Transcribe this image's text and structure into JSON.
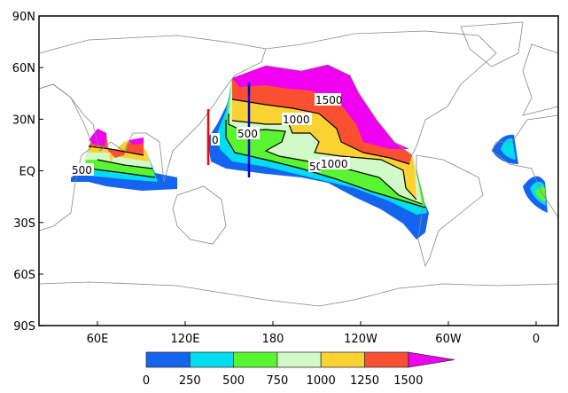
{
  "map": {
    "lat_ticks": [
      "90N",
      "60N",
      "30N",
      "EQ",
      "30S",
      "60S",
      "90S"
    ],
    "lon_ticks": [
      "60E",
      "120E",
      "180",
      "120W",
      "60W",
      "0"
    ],
    "contour_labels": [
      "1500",
      "1000",
      "500",
      "0",
      "50",
      "1000",
      "500"
    ],
    "markers": {
      "red_line_color": "#ff0000",
      "blue_line_color": "#0000cc"
    }
  },
  "colorbar": {
    "levels": [
      "0",
      "250",
      "500",
      "750",
      "1000",
      "1250",
      "1500"
    ],
    "colors": [
      "#1464f0",
      "#00dcf0",
      "#5af532",
      "#d2fac8",
      "#fad232",
      "#fa5032",
      "#f000f0"
    ]
  }
}
